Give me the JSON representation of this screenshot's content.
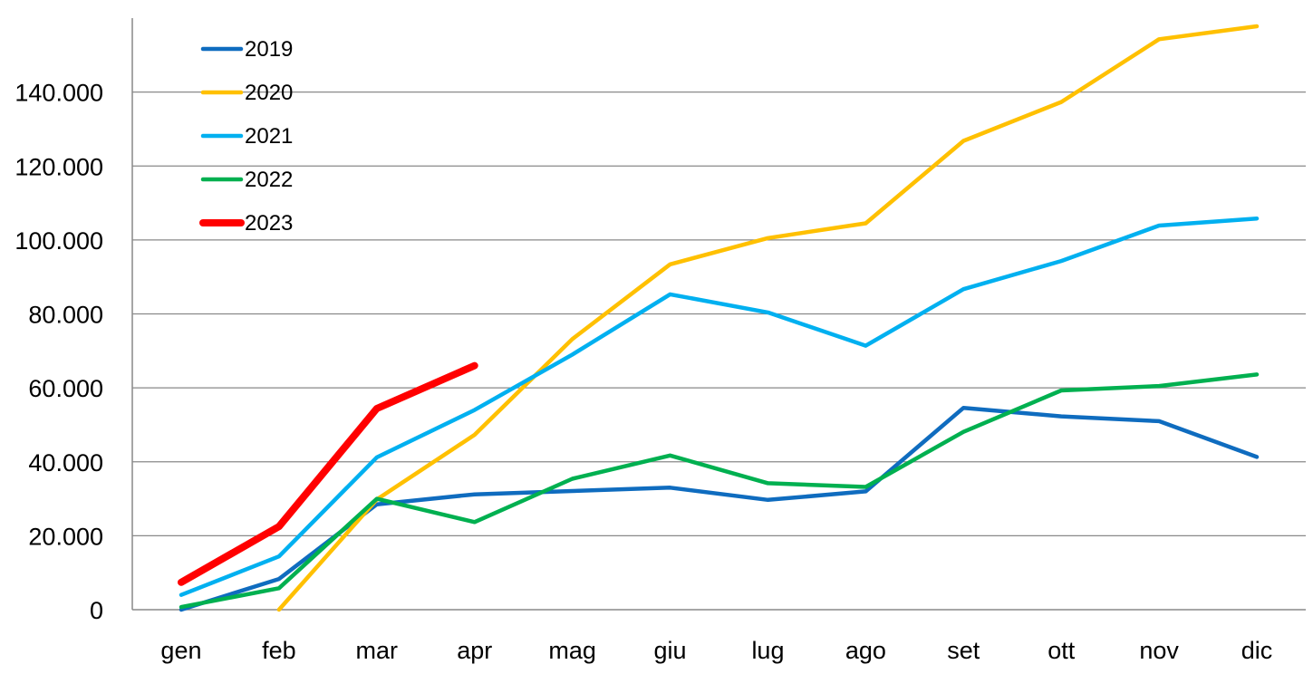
{
  "chart_data": {
    "type": "line",
    "title": "",
    "xlabel": "",
    "ylabel": "",
    "categories": [
      "gen",
      "feb",
      "mar",
      "apr",
      "mag",
      "giu",
      "lug",
      "ago",
      "set",
      "ott",
      "nov",
      "dic"
    ],
    "ylim": [
      0,
      160000
    ],
    "yticks": [
      0,
      20000,
      40000,
      60000,
      80000,
      100000,
      120000,
      140000
    ],
    "ytick_labels": [
      "0",
      "20.000",
      "40.000",
      "60.000",
      "80.000",
      "100.000",
      "120.000",
      "140.000"
    ],
    "grid": "horizontal",
    "legend_position": "top-left",
    "series": [
      {
        "name": "2019",
        "color": "#0F6CBF",
        "width": "normal",
        "values": [
          0,
          8300,
          28500,
          31200,
          32100,
          33000,
          29700,
          32000,
          54600,
          52300,
          51000,
          41300
        ]
      },
      {
        "name": "2020",
        "color": "#FFC000",
        "width": "normal",
        "values": [
          null,
          0,
          29800,
          47300,
          73200,
          93400,
          100500,
          104500,
          126800,
          137300,
          154300,
          157800
        ]
      },
      {
        "name": "2021",
        "color": "#00B0F0",
        "width": "normal",
        "values": [
          4000,
          14400,
          41200,
          54000,
          69000,
          85300,
          80400,
          71400,
          86700,
          94300,
          103900,
          105800
        ]
      },
      {
        "name": "2022",
        "color": "#00B050",
        "width": "normal",
        "values": [
          700,
          5800,
          30000,
          23700,
          35400,
          41700,
          34200,
          33200,
          48100,
          59300,
          60500,
          63600
        ]
      },
      {
        "name": "2023",
        "color": "#FF0000",
        "width": "thick",
        "values": [
          7400,
          22500,
          54400,
          66000,
          null,
          null,
          null,
          null,
          null,
          null,
          null,
          null
        ]
      }
    ]
  }
}
